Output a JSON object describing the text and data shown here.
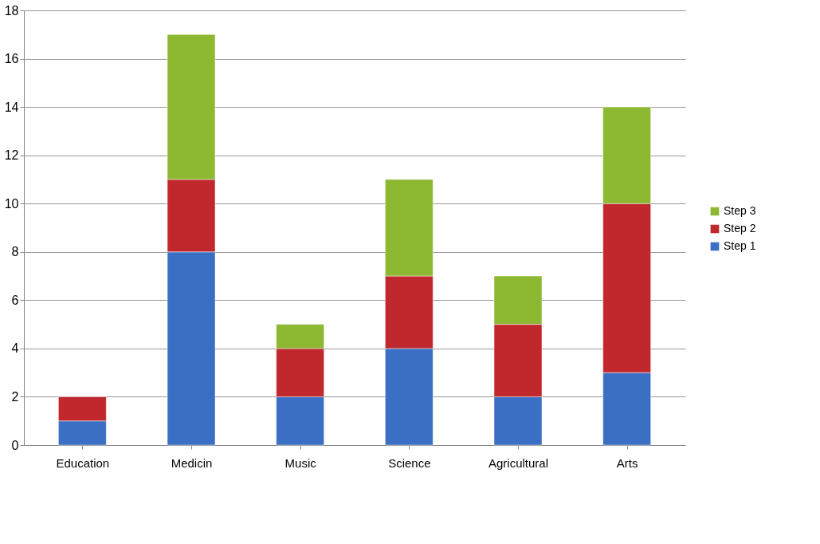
{
  "chart_data": {
    "type": "bar",
    "stacked": true,
    "categories": [
      "Education",
      "Medicin",
      "Music",
      "Science",
      "Agricultural",
      "Arts"
    ],
    "series": [
      {
        "name": "Step 1",
        "color": "#3a6fc4",
        "values": [
          1,
          8,
          2,
          4,
          2,
          3
        ]
      },
      {
        "name": "Step 2",
        "color": "#c0282d",
        "values": [
          1,
          3,
          2,
          3,
          3,
          7
        ]
      },
      {
        "name": "Step 3",
        "color": "#8cb832",
        "values": [
          null,
          6,
          1,
          4,
          2,
          4
        ]
      }
    ],
    "ylim": [
      0,
      18
    ],
    "yticks": [
      0,
      2,
      4,
      6,
      8,
      10,
      12,
      14,
      16,
      18
    ],
    "grid": "y",
    "legend": "right"
  }
}
